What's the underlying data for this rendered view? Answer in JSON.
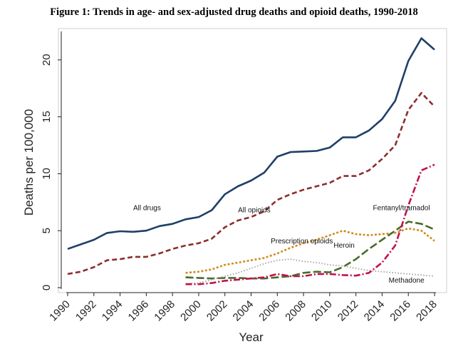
{
  "figure": {
    "title": "Figure 1: Trends in age- and sex-adjusted drug deaths and opioid deaths, 1990-2018"
  },
  "chart_data": {
    "type": "line",
    "title": "Figure 1: Trends in age- and sex-adjusted drug deaths and opioid deaths, 1990-2018",
    "xlabel": "Year",
    "ylabel": "Deaths per 100,000",
    "xlim": [
      1990,
      2018
    ],
    "ylim": [
      0,
      22
    ],
    "xticks": [
      "1990",
      "1992",
      "1994",
      "1996",
      "1998",
      "2000",
      "2002",
      "2004",
      "2006",
      "2008",
      "2010",
      "2012",
      "2014",
      "2016",
      "2018"
    ],
    "yticks": [
      "0",
      "5",
      "10",
      "15",
      "20"
    ],
    "grid": false,
    "legend": "none",
    "series": [
      {
        "name": "All drugs",
        "color": "#1f3f66",
        "style": "solid",
        "x": [
          1990,
          1991,
          1992,
          1993,
          1994,
          1995,
          1996,
          1997,
          1998,
          1999,
          2000,
          2001,
          2002,
          2003,
          2004,
          2005,
          2006,
          2007,
          2008,
          2009,
          2010,
          2011,
          2012,
          2013,
          2014,
          2015,
          2016,
          2017,
          2018
        ],
        "y": [
          3.4,
          3.8,
          4.2,
          4.8,
          4.95,
          4.9,
          5.0,
          5.4,
          5.6,
          6.0,
          6.2,
          6.8,
          8.2,
          8.9,
          9.4,
          10.1,
          11.5,
          11.9,
          11.95,
          12.0,
          12.3,
          13.2,
          13.2,
          13.8,
          14.8,
          16.4,
          19.9,
          21.9,
          20.9
        ]
      },
      {
        "name": "All opioids",
        "color": "#8b2e2e",
        "style": "dash",
        "x": [
          1990,
          1991,
          1992,
          1993,
          1994,
          1995,
          1996,
          1997,
          1998,
          1999,
          2000,
          2001,
          2002,
          2003,
          2004,
          2005,
          2006,
          2007,
          2008,
          2009,
          2010,
          2011,
          2012,
          2013,
          2014,
          2015,
          2016,
          2017,
          2018
        ],
        "y": [
          1.2,
          1.4,
          1.8,
          2.4,
          2.5,
          2.7,
          2.7,
          3.0,
          3.4,
          3.7,
          3.9,
          4.3,
          5.3,
          5.9,
          6.2,
          6.7,
          7.7,
          8.2,
          8.6,
          8.9,
          9.2,
          9.8,
          9.8,
          10.3,
          11.3,
          12.5,
          15.6,
          17.1,
          15.9
        ]
      },
      {
        "name": "Prescription opioids",
        "color": "#d18c1a",
        "style": "dot",
        "x": [
          1999,
          2000,
          2001,
          2002,
          2003,
          2004,
          2005,
          2006,
          2007,
          2008,
          2009,
          2010,
          2011,
          2012,
          2013,
          2014,
          2015,
          2016,
          2017,
          2018
        ],
        "y": [
          1.3,
          1.4,
          1.6,
          2.0,
          2.2,
          2.4,
          2.6,
          3.0,
          3.5,
          3.9,
          4.2,
          4.6,
          5.0,
          4.7,
          4.6,
          4.7,
          4.8,
          5.2,
          5.0,
          4.1
        ]
      },
      {
        "name": "Heroin",
        "color": "#4a6b2a",
        "style": "longdash",
        "x": [
          1999,
          2000,
          2001,
          2002,
          2003,
          2004,
          2005,
          2006,
          2007,
          2008,
          2009,
          2010,
          2011,
          2012,
          2013,
          2014,
          2015,
          2016,
          2017,
          2018
        ],
        "y": [
          0.9,
          0.85,
          0.8,
          0.85,
          0.85,
          0.8,
          0.8,
          0.9,
          1.0,
          1.3,
          1.4,
          1.35,
          1.8,
          2.5,
          3.4,
          4.2,
          5.0,
          5.8,
          5.6,
          5.1
        ]
      },
      {
        "name": "Methadone",
        "color": "#a8a8a8",
        "style": "fine-dot",
        "x": [
          1999,
          2000,
          2001,
          2002,
          2003,
          2004,
          2005,
          2006,
          2007,
          2008,
          2009,
          2010,
          2011,
          2012,
          2013,
          2014,
          2015,
          2016,
          2017,
          2018
        ],
        "y": [
          0.35,
          0.4,
          0.7,
          1.0,
          1.3,
          1.7,
          2.1,
          2.4,
          2.5,
          2.3,
          2.2,
          2.0,
          1.9,
          1.7,
          1.5,
          1.4,
          1.3,
          1.2,
          1.1,
          1.0
        ]
      },
      {
        "name": "Fentanyl/tramadol",
        "color": "#c0124f",
        "style": "dashdot",
        "x": [
          1999,
          2000,
          2001,
          2002,
          2003,
          2004,
          2005,
          2006,
          2007,
          2008,
          2009,
          2010,
          2011,
          2012,
          2013,
          2014,
          2015,
          2016,
          2017,
          2018
        ],
        "y": [
          0.3,
          0.3,
          0.4,
          0.6,
          0.7,
          0.8,
          0.9,
          1.2,
          1.0,
          1.0,
          1.2,
          1.2,
          1.1,
          1.05,
          1.3,
          2.2,
          3.7,
          7.2,
          10.3,
          10.8
        ]
      }
    ],
    "annotations": [
      {
        "text": "All drugs",
        "x": 1995.0,
        "y": 6.8
      },
      {
        "text": "All opioids",
        "x": 2003.0,
        "y": 6.6
      },
      {
        "text": "Prescription opioids",
        "x": 2005.5,
        "y": 3.9
      },
      {
        "text": "Heroin",
        "x": 2010.3,
        "y": 3.5
      },
      {
        "text": "Fentanyl/tramadol",
        "x": 2013.3,
        "y": 6.8
      },
      {
        "text": "Methadone",
        "x": 2014.5,
        "y": 0.45
      }
    ]
  }
}
